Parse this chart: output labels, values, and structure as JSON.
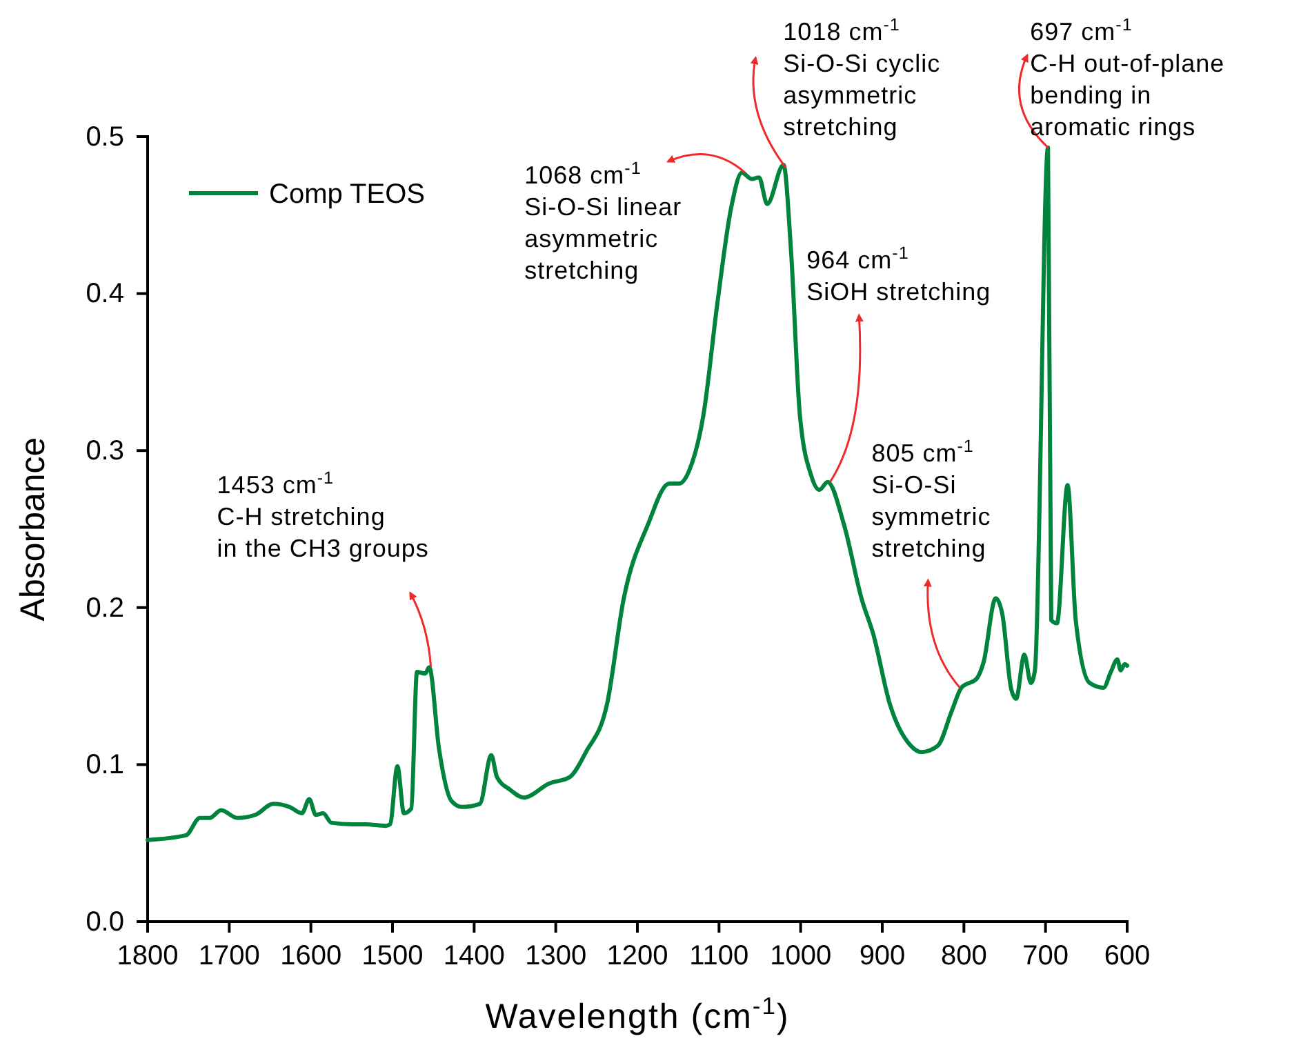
{
  "chart_data": {
    "type": "line",
    "xlabel": "Wavelength (cm$^{-1}$)",
    "ylabel": "Absorbance",
    "xlim": [
      1800,
      600
    ],
    "xticks": [
      1800,
      1700,
      1600,
      1500,
      1400,
      1300,
      1200,
      1100,
      1000,
      900,
      800,
      700,
      600
    ],
    "ylim": [
      0,
      0.5
    ],
    "yticks": [
      {
        "value": 0,
        "label": "0.0"
      },
      0.1,
      0.2,
      0.3,
      0.4,
      0.5
    ],
    "grid": false,
    "legend": "top left",
    "line_style": "solid",
    "marker": "none",
    "series": [
      {
        "name": "Comp TEOS",
        "color": "#00843d",
        "x": [
          1800,
          1753,
          1736,
          1724,
          1710,
          1690,
          1668,
          1646,
          1626,
          1611,
          1602,
          1594,
          1585,
          1575,
          1550,
          1533,
          1508,
          1503,
          1494,
          1486,
          1477,
          1470,
          1460,
          1455,
          1443,
          1428,
          1415,
          1393,
          1379,
          1372,
          1356,
          1339,
          1308,
          1283,
          1263,
          1237,
          1217,
          1187,
          1161,
          1149,
          1136,
          1119,
          1102,
          1085,
          1072,
          1060,
          1051,
          1041,
          1021,
          1012,
          1001,
          987,
          977,
          967,
          947,
          925,
          911,
          891,
          865,
          852,
          832,
          815,
          803,
          784,
          776,
          761,
          753,
          742,
          736,
          726,
          718,
          713,
          697,
          693,
          686,
          673,
          663,
          646,
          629,
          620,
          612,
          608,
          603,
          600
        ],
        "values": [
          0.052,
          0.055,
          0.066,
          0.066,
          0.071,
          0.066,
          0.068,
          0.075,
          0.073,
          0.069,
          0.078,
          0.068,
          0.069,
          0.063,
          0.062,
          0.062,
          0.061,
          0.062,
          0.099,
          0.069,
          0.072,
          0.159,
          0.158,
          0.162,
          0.11,
          0.077,
          0.073,
          0.075,
          0.106,
          0.092,
          0.084,
          0.079,
          0.088,
          0.092,
          0.108,
          0.139,
          0.205,
          0.253,
          0.279,
          0.279,
          0.288,
          0.323,
          0.394,
          0.455,
          0.477,
          0.473,
          0.474,
          0.457,
          0.482,
          0.429,
          0.323,
          0.284,
          0.275,
          0.28,
          0.253,
          0.205,
          0.183,
          0.139,
          0.112,
          0.108,
          0.112,
          0.134,
          0.149,
          0.155,
          0.165,
          0.206,
          0.196,
          0.148,
          0.142,
          0.17,
          0.152,
          0.16,
          0.493,
          0.192,
          0.19,
          0.278,
          0.192,
          0.152,
          0.149,
          0.159,
          0.167,
          0.16,
          0.164,
          0.163
        ]
      }
    ],
    "annotations": [
      {
        "text": "1453 cm$^{-1}$\nC-H stretching\nin the CH3 groups",
        "x": 1453,
        "y": 0.162
      },
      {
        "text": "1068 cm$^{-1}$\nSi-O-Si linear\nasymmetric\nstretching",
        "x": 1068,
        "y": 0.477
      },
      {
        "text": "1018 cm$^{-1}$\nSi-O-Si cyclic\nasymmetric\nstretching",
        "x": 1018,
        "y": 0.48
      },
      {
        "text": "964 cm$^{-1}$\nSiOH stretching",
        "x": 964,
        "y": 0.28
      },
      {
        "text": "805 cm$^{-1}$\nSi-O-Si\nsymmetric\nstretching",
        "x": 805,
        "y": 0.149
      },
      {
        "text": "697 cm$^{-1}$\nC-H out-of-plane\nbending in\naromatic rings",
        "x": 697,
        "y": 0.493
      }
    ]
  }
}
